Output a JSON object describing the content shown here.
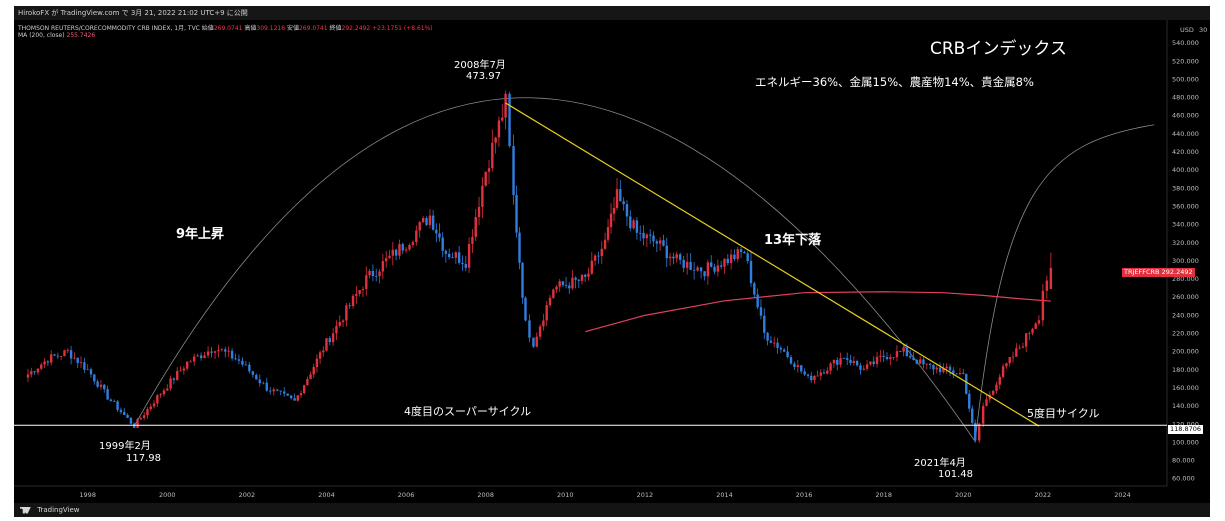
{
  "header": {
    "publisher": "HirokoFX が TradingView.com で 3月 21, 2022 21:02 UTC+9 に公開",
    "symbol_line": "THOMSON REUTERS/CORECOMMODITY CRB INDEX, 1月, TVC",
    "open_label": "始値",
    "open_value": "269.0741",
    "high_label": "高値",
    "high_value": "309.1216",
    "low_label": "安値",
    "low_value": "269.0741",
    "close_label": "終値",
    "close_value": "292.2492",
    "change_value": "+23.1751 (+8.61%)",
    "ma_label": "MA (200, close)",
    "ma_value": "255.7426"
  },
  "footer": {
    "brand": "TradingView"
  },
  "axis": {
    "currency": "USD",
    "right_top_value": "30"
  },
  "price_labels": {
    "ticker": "TRJEFFCRB",
    "ticker_value": "292.2492",
    "support_value": "118.8706"
  },
  "colors": {
    "up": "#e0313e",
    "down": "#2f7fe0",
    "ma": "#e0405e",
    "trendline": "#e8cf1c",
    "arc": "#8a8a8a",
    "support": "#ffffff",
    "ticker_bg": "#e0313e"
  },
  "annotations": {
    "title": "CRBインデックス",
    "composition": "エネルギー36%、金属15%、農産物14%、貴金属8%",
    "peak_date": "2008年7月",
    "peak_value": "473.97",
    "rise": "9年上昇",
    "fall": "13年下落",
    "supercycle": "4度目のスーパーサイクル",
    "cycle5": "5度目サイクル",
    "low1_date": "1999年2月",
    "low1_value": "117.98",
    "low2_date": "2021年4月",
    "low2_value": "101.48"
  },
  "chart_data": {
    "type": "candlestick",
    "title": "THOMSON REUTERS/CORECOMMODITY CRB INDEX",
    "interval": "1月",
    "x_ticks": [
      "1998",
      "2000",
      "2002",
      "2004",
      "2006",
      "2008",
      "2010",
      "2012",
      "2014",
      "2016",
      "2018",
      "2020",
      "2022",
      "2024"
    ],
    "y_ticks": [
      60,
      80,
      100,
      120,
      140,
      160,
      180,
      200,
      220,
      240,
      260,
      280,
      300,
      320,
      340,
      360,
      380,
      400,
      420,
      440,
      460,
      480,
      500,
      520,
      540
    ],
    "ylim": [
      50,
      550
    ],
    "xlim": [
      1996.4,
      2025.4
    ],
    "series": [
      {
        "name": "CRB",
        "type": "candlestick",
        "x": [
          1996.5,
          1997.0,
          1997.5,
          1998.0,
          1998.5,
          1999.17,
          1999.75,
          2000.5,
          2001.2,
          2001.8,
          2002.5,
          2003.2,
          2004.0,
          2005.0,
          2006.0,
          2006.6,
          2007.0,
          2007.5,
          2008.0,
          2008.5,
          2008.7,
          2009.0,
          2009.2,
          2009.7,
          2010.5,
          2011.0,
          2011.3,
          2011.8,
          2012.3,
          2012.8,
          2013.5,
          2014.0,
          2014.5,
          2015.0,
          2015.5,
          2016.1,
          2016.5,
          2017.0,
          2017.5,
          2018.0,
          2018.5,
          2019.0,
          2019.5,
          2020.0,
          2020.3,
          2020.5,
          2021.0,
          2021.5,
          2021.9,
          2022.0,
          2022.2
        ],
        "close": [
          175,
          192,
          200,
          180,
          150,
          118,
          150,
          188,
          205,
          190,
          160,
          145,
          210,
          280,
          320,
          350,
          310,
          300,
          400,
          474,
          370,
          230,
          210,
          270,
          280,
          320,
          370,
          330,
          320,
          300,
          290,
          300,
          310,
          220,
          200,
          170,
          180,
          195,
          180,
          195,
          200,
          185,
          180,
          175,
          101,
          140,
          180,
          210,
          240,
          269,
          292
        ]
      },
      {
        "name": "MA (200, close)",
        "type": "line",
        "x": [
          2010.5,
          2012.0,
          2014.0,
          2016.0,
          2018.0,
          2019.5,
          2020.5,
          2021.5,
          2022.2
        ],
        "y": [
          222,
          240,
          256,
          265,
          266,
          265,
          262,
          258,
          255.74
        ]
      }
    ],
    "lines": [
      {
        "name": "trendline",
        "from": [
          2008.5,
          473.97
        ],
        "to": [
          2021.9,
          118
        ]
      },
      {
        "name": "support",
        "y": 118.87
      }
    ],
    "grid": false
  }
}
